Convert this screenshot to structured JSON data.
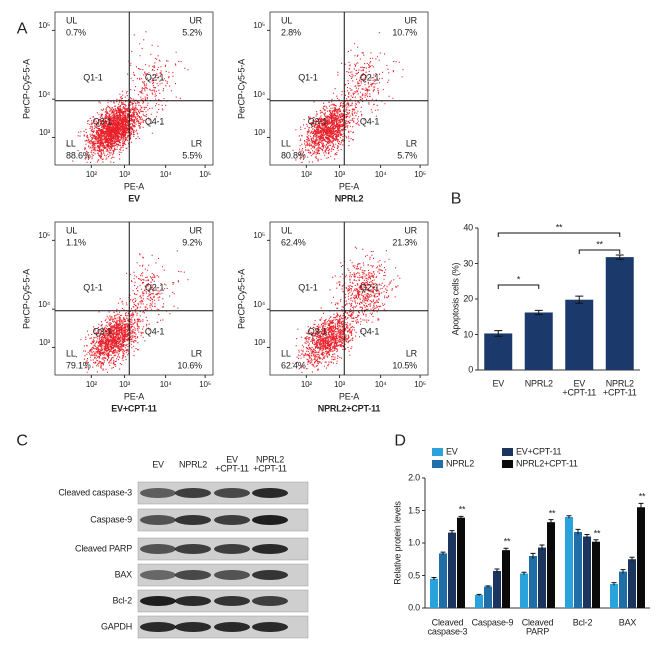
{
  "panels": [
    "A",
    "B",
    "C",
    "D"
  ],
  "flow": {
    "y_label": "PerCP-Cy5-5-A",
    "x_label": "PE-A",
    "xticks": [
      "10²",
      "10³",
      "10⁴",
      "10⁵"
    ],
    "yticks": [
      "10⁵",
      "10⁴",
      "10³"
    ],
    "corners": [
      "UL",
      "UR",
      "LL",
      "LR"
    ],
    "quadrants": [
      "Q1-1",
      "Q2-1",
      "Q3-1",
      "Q4-1"
    ],
    "plots": [
      {
        "title": "EV",
        "percents": [
          "0.7%",
          "5.2%",
          "88.6%",
          "5.5%"
        ]
      },
      {
        "title": "NPRL2",
        "percents": [
          "2.8%",
          "10.7%",
          "80.8%",
          "5.7%"
        ]
      },
      {
        "title": "EV+CPT-11",
        "percents": [
          "1.1%",
          "9.2%",
          "79.1%",
          "10.6%"
        ]
      },
      {
        "title": "NPRL2+CPT-11",
        "percents": [
          "62.4%",
          "21.3%",
          "62.4%",
          "10.5%"
        ]
      }
    ]
  },
  "blot": {
    "columns": [
      "EV",
      "NPRL2",
      "EV\n+CPT-11",
      "NPRL2\n+CPT-11"
    ],
    "rows": [
      "Cleaved caspase-3",
      "Caspase-9",
      "Cleaved PARP",
      "BAX",
      "Bcl-2",
      "GAPDH"
    ]
  },
  "chart_data": [
    {
      "type": "bar",
      "y_label": "Apoptosis cells (%)",
      "categories": [
        "EV",
        "NPRL2",
        "EV\n+CPT-11",
        "NPRL2\n+CPT-11"
      ],
      "values": [
        10.3,
        16.2,
        19.8,
        31.8
      ],
      "errors": [
        0.8,
        0.6,
        1.0,
        0.6
      ],
      "color": "#1b3a6b",
      "ylim": [
        0,
        40
      ],
      "yticks": [
        0,
        10,
        20,
        30,
        40
      ],
      "annotations": [
        "*",
        "**",
        "**"
      ]
    },
    {
      "type": "grouped_bar",
      "y_label": "Relative protein levels",
      "categories": [
        "Cleaved\ncaspase-3",
        "Caspase-9",
        "Cleaved\nPARP",
        "Bcl-2",
        "BAX"
      ],
      "series": [
        {
          "name": "EV",
          "color": "#2aa3dc",
          "values": [
            0.45,
            0.2,
            0.53,
            1.4,
            0.37
          ],
          "errors": [
            0.02,
            0.01,
            0.02,
            0.02,
            0.02
          ]
        },
        {
          "name": "NPRL2",
          "color": "#1f6ea8",
          "values": [
            0.84,
            0.33,
            0.8,
            1.17,
            0.56
          ],
          "errors": [
            0.02,
            0.01,
            0.04,
            0.04,
            0.03
          ]
        },
        {
          "name": "EV+CPT-11",
          "color": "#1c355e",
          "values": [
            1.16,
            0.57,
            0.93,
            1.1,
            0.75
          ],
          "errors": [
            0.03,
            0.03,
            0.04,
            0.03,
            0.03
          ]
        },
        {
          "name": "NPRL2+CPT-11",
          "color": "#0a0a0a",
          "values": [
            1.39,
            0.89,
            1.32,
            1.02,
            1.55
          ],
          "errors": [
            0.02,
            0.03,
            0.04,
            0.03,
            0.06
          ]
        }
      ],
      "ylim": [
        0,
        2
      ],
      "yticks": [
        {
          "value": 0,
          "label": "0.0"
        },
        0.5,
        {
          "value": 1,
          "label": "1.0"
        },
        1.5,
        {
          "value": 2,
          "label": "2.0"
        }
      ],
      "annotations": [
        "**",
        "**",
        "**",
        "**",
        "**"
      ]
    }
  ]
}
